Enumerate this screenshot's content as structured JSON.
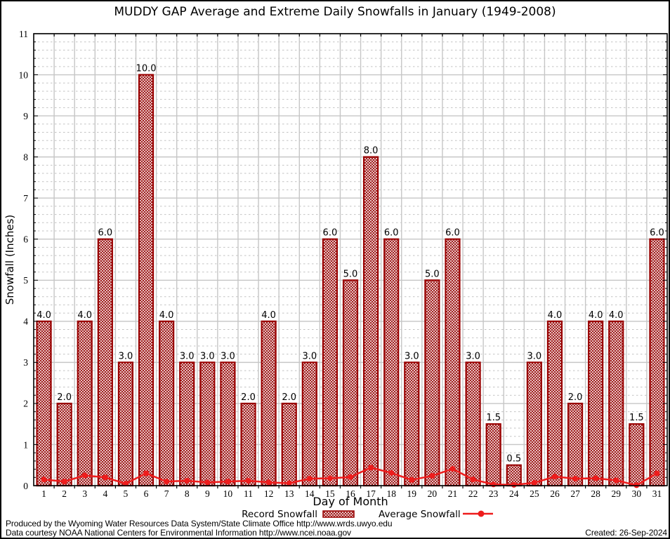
{
  "title": "MUDDY GAP Average and Extreme Daily Snowfalls in January (1949-2008)",
  "chart_data": {
    "type": "bar",
    "title": "MUDDY GAP Average and Extreme Daily Snowfalls in January (1949-2008)",
    "xlabel": "Day of Month",
    "ylabel": "Snowfall (Inches)",
    "ylim": [
      0,
      11
    ],
    "yticks": [
      0,
      1,
      2,
      3,
      4,
      5,
      6,
      7,
      8,
      9,
      10,
      11
    ],
    "categories": [
      1,
      2,
      3,
      4,
      5,
      6,
      7,
      8,
      9,
      10,
      11,
      12,
      13,
      14,
      15,
      16,
      17,
      18,
      19,
      20,
      21,
      22,
      23,
      24,
      25,
      26,
      27,
      28,
      29,
      30,
      31
    ],
    "grid": "major solid gray, minor dashed gray (0.2 steps)",
    "legend_position": "bottom",
    "series": [
      {
        "name": "Record Snowfall",
        "type": "bar",
        "values": [
          4.0,
          2.0,
          4.0,
          6.0,
          3.0,
          10.0,
          4.0,
          3.0,
          3.0,
          3.0,
          2.0,
          4.0,
          2.0,
          3.0,
          6.0,
          5.0,
          8.0,
          6.0,
          3.0,
          5.0,
          6.0,
          3.0,
          1.5,
          0.5,
          3.0,
          4.0,
          2.0,
          4.0,
          4.0,
          1.5,
          6.0
        ],
        "labels": [
          "4.0",
          "2.0",
          "4.0",
          "6.0",
          "3.0",
          "10.0",
          "4.0",
          "3.0",
          "3.0",
          "3.0",
          "2.0",
          "4.0",
          "2.0",
          "3.0",
          "6.0",
          "5.0",
          "8.0",
          "6.0",
          "3.0",
          "5.0",
          "6.0",
          "3.0",
          "1.5",
          "0.5",
          "3.0",
          "4.0",
          "2.0",
          "4.0",
          "4.0",
          "1.5",
          "6.0"
        ]
      },
      {
        "name": "Average Snowfall",
        "type": "line",
        "values": [
          0.15,
          0.1,
          0.25,
          0.2,
          0.05,
          0.3,
          0.1,
          0.12,
          0.08,
          0.1,
          0.12,
          0.08,
          0.06,
          0.17,
          0.18,
          0.21,
          0.44,
          0.31,
          0.14,
          0.24,
          0.41,
          0.15,
          0.03,
          0.02,
          0.07,
          0.22,
          0.17,
          0.18,
          0.13,
          0.01,
          0.3
        ]
      }
    ]
  },
  "colors": {
    "bar_border": "#990000",
    "bar_hatch": "#9b1111",
    "avg_line": "#ee1c1c",
    "grid_major": "#c6c6c6",
    "grid_minor": "#c2c2c2",
    "frame": "#000000",
    "background": "#ffffff"
  },
  "footer": {
    "line1": "Produced by the Wyoming Water Resources Data System/State Climate Office http://www.wrds.uwyo.edu",
    "line2": "Data courtesy NOAA National Centers for Environmental Information http://www.ncei.noaa.gov",
    "created": "Created: 26-Sep-2024"
  }
}
